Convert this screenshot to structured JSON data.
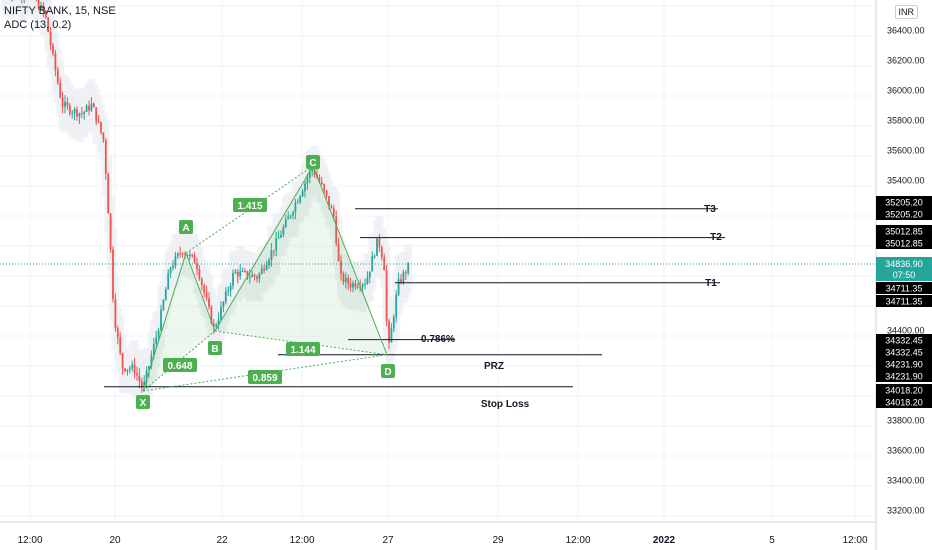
{
  "header": {
    "symbol_line": "NIFTY BANK, 15, NSE",
    "indicator_line": "ADC (13, 0.2)",
    "currency": "INR"
  },
  "colors": {
    "up": "#26a69a",
    "down": "#ef5350",
    "pattern": "#4caf50",
    "label_bg": "#4caf50",
    "price_tag": "#000000",
    "current_tag": "#26a69a"
  },
  "chart_data": {
    "type": "candlestick",
    "y_ticks": [
      "36400.00",
      "36200.00",
      "36000.00",
      "35800.00",
      "35600.00",
      "35400.00",
      "34400.00",
      "33800.00",
      "33600.00",
      "33400.00",
      "33200.00"
    ],
    "x_ticks": [
      "12:00",
      "20",
      "22",
      "12:00",
      "27",
      "29",
      "12:00",
      "2022",
      "5",
      "12:00"
    ],
    "pattern_points": [
      {
        "label": "X",
        "price": 33990
      },
      {
        "label": "A",
        "price": 34910
      },
      {
        "label": "B",
        "price": 34390
      },
      {
        "label": "C",
        "price": 35490
      },
      {
        "label": "D",
        "price": 34231.9
      }
    ],
    "ratios": [
      "0.648",
      "1.415",
      "1.144",
      "0.859"
    ],
    "levels": [
      {
        "label": "T3",
        "price": 35205.2
      },
      {
        "label": "T2",
        "price": 35012.85
      },
      {
        "label": "T1",
        "price": 34711.35
      },
      {
        "label": "0.786%",
        "price": 34332.45
      },
      {
        "label": "PRZ",
        "price": 34231.9
      },
      {
        "label": "Stop Loss",
        "price": 34018.2
      }
    ],
    "price_tags": [
      "35205.20",
      "35205.20",
      "35012.85",
      "35012.85",
      "34711.35",
      "34711.35",
      "34332.45",
      "34332.45",
      "34231.90",
      "34231.90",
      "34018.20",
      "34018.20"
    ],
    "current": {
      "price": "34836.90",
      "countdown": "07:50"
    }
  }
}
